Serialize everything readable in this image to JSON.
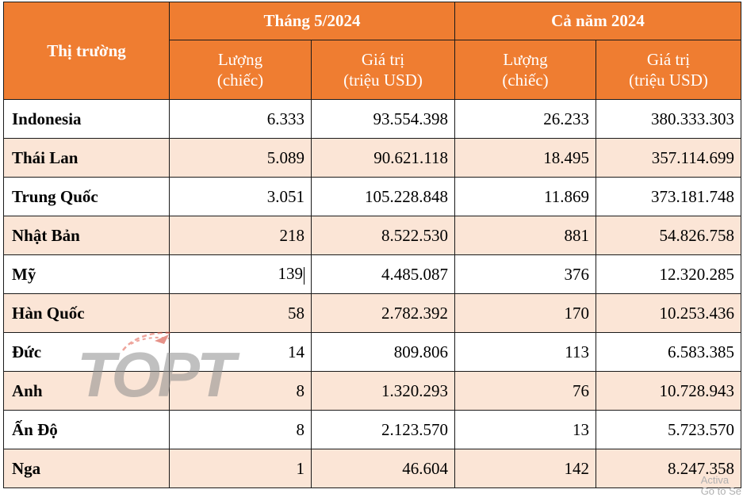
{
  "table": {
    "header": {
      "market": "Thị trường",
      "group1": "Tháng 5/2024",
      "group2": "Cả năm 2024",
      "qty_line1": "Lượng",
      "qty_line2": "(chiếc)",
      "val_line1": "Giá trị",
      "val_line2": "(triệu USD)"
    },
    "rows": [
      {
        "market": "Indonesia",
        "qty_may": "6.333",
        "val_may": "93.554.398",
        "qty_year": "26.233",
        "val_year": "380.333.303"
      },
      {
        "market": "Thái Lan",
        "qty_may": "5.089",
        "val_may": "90.621.118",
        "qty_year": "18.495",
        "val_year": "357.114.699"
      },
      {
        "market": "Trung Quốc",
        "qty_may": "3.051",
        "val_may": "105.228.848",
        "qty_year": "11.869",
        "val_year": "373.181.748"
      },
      {
        "market": "Nhật Bản",
        "qty_may": "218",
        "val_may": "8.522.530",
        "qty_year": "881",
        "val_year": "54.826.758"
      },
      {
        "market": "Mỹ",
        "qty_may": "139",
        "val_may": "4.485.087",
        "qty_year": "376",
        "val_year": "12.320.285"
      },
      {
        "market": "Hàn Quốc",
        "qty_may": "58",
        "val_may": "2.782.392",
        "qty_year": "170",
        "val_year": "10.253.436"
      },
      {
        "market": "Đức",
        "qty_may": "14",
        "val_may": "809.806",
        "qty_year": "113",
        "val_year": "6.583.385"
      },
      {
        "market": "Anh",
        "qty_may": "8",
        "val_may": "1.320.293",
        "qty_year": "76",
        "val_year": "10.728.943"
      },
      {
        "market": "Ấn Độ",
        "qty_may": "8",
        "val_may": "2.123.570",
        "qty_year": "13",
        "val_year": "5.723.570"
      },
      {
        "market": "Nga",
        "qty_may": "1",
        "val_may": "46.604",
        "qty_year": "142",
        "val_year": "8.247.358"
      }
    ]
  },
  "watermark": {
    "logo_text": "TOPT",
    "os_notice_line1": "Activa",
    "os_notice_line2": "Go to Se"
  },
  "colors": {
    "header_bg": "#ef7d31",
    "stripe_bg": "#fbe5d6",
    "border": "#1a1a1a"
  }
}
